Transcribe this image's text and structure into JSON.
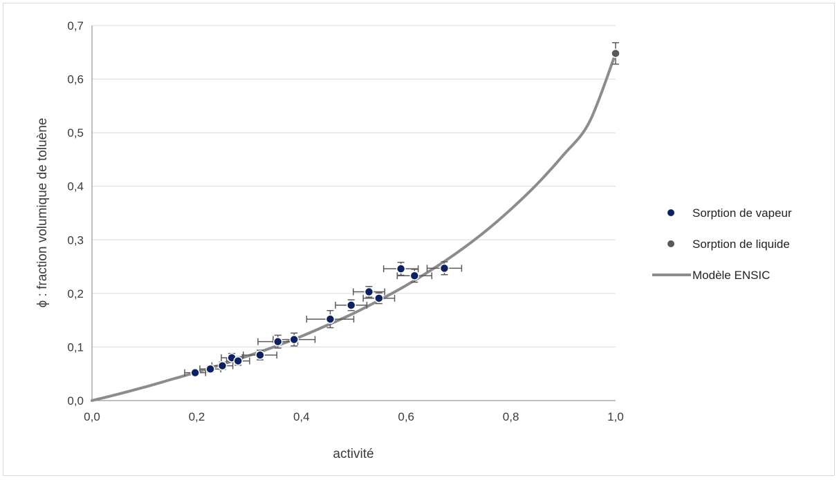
{
  "chart_data": {
    "type": "scatter",
    "title": "",
    "xlabel": "activité",
    "ylabel": "ϕ : fraction volumique de toluène",
    "xlim": [
      0.0,
      1.0
    ],
    "ylim": [
      0.0,
      0.7
    ],
    "x_ticks": [
      "0,0",
      "0,2",
      "0,4",
      "0,6",
      "0,8",
      "1,0"
    ],
    "y_ticks": [
      "0,0",
      "0,1",
      "0,2",
      "0,3",
      "0,4",
      "0,5",
      "0,6",
      "0,7"
    ],
    "grid": "horizontal",
    "legend_position": "right",
    "series": [
      {
        "name": "Sorption de vapeur",
        "kind": "points",
        "color": "#0b2161",
        "points": [
          {
            "x": 0.197,
            "y": 0.052,
            "xerr": 0.02,
            "yerr": 0.005
          },
          {
            "x": 0.226,
            "y": 0.059,
            "xerr": 0.02,
            "yerr": 0.006
          },
          {
            "x": 0.249,
            "y": 0.065,
            "xerr": 0.02,
            "yerr": 0.007
          },
          {
            "x": 0.267,
            "y": 0.08,
            "xerr": 0.02,
            "yerr": 0.008
          },
          {
            "x": 0.279,
            "y": 0.074,
            "xerr": 0.022,
            "yerr": 0.008
          },
          {
            "x": 0.321,
            "y": 0.085,
            "xerr": 0.032,
            "yerr": 0.009
          },
          {
            "x": 0.355,
            "y": 0.11,
            "xerr": 0.038,
            "yerr": 0.012
          },
          {
            "x": 0.386,
            "y": 0.114,
            "xerr": 0.04,
            "yerr": 0.012
          },
          {
            "x": 0.455,
            "y": 0.152,
            "xerr": 0.045,
            "yerr": 0.016
          },
          {
            "x": 0.495,
            "y": 0.178,
            "xerr": 0.03,
            "yerr": 0.01
          },
          {
            "x": 0.529,
            "y": 0.203,
            "xerr": 0.03,
            "yerr": 0.01
          },
          {
            "x": 0.548,
            "y": 0.191,
            "xerr": 0.03,
            "yerr": 0.01
          },
          {
            "x": 0.59,
            "y": 0.246,
            "xerr": 0.033,
            "yerr": 0.012
          },
          {
            "x": 0.616,
            "y": 0.233,
            "xerr": 0.033,
            "yerr": 0.012
          },
          {
            "x": 0.673,
            "y": 0.247,
            "xerr": 0.033,
            "yerr": 0.012
          }
        ]
      },
      {
        "name": "Sorption de liquide",
        "kind": "points",
        "color": "#595959",
        "points": [
          {
            "x": 1.0,
            "y": 0.648,
            "xerr": 0,
            "yerr": 0.02
          }
        ]
      },
      {
        "name": "Modèle ENSIC",
        "kind": "line",
        "color": "#8c8c8c",
        "x": [
          0.0,
          0.05,
          0.1,
          0.15,
          0.2,
          0.25,
          0.3,
          0.35,
          0.4,
          0.45,
          0.5,
          0.55,
          0.6,
          0.65,
          0.7,
          0.75,
          0.8,
          0.85,
          0.9,
          0.95,
          1.0
        ],
        "values": [
          0.0,
          0.012,
          0.025,
          0.039,
          0.053,
          0.068,
          0.084,
          0.101,
          0.12,
          0.141,
          0.163,
          0.188,
          0.215,
          0.245,
          0.278,
          0.315,
          0.357,
          0.404,
          0.458,
          0.52,
          0.648
        ]
      }
    ]
  }
}
